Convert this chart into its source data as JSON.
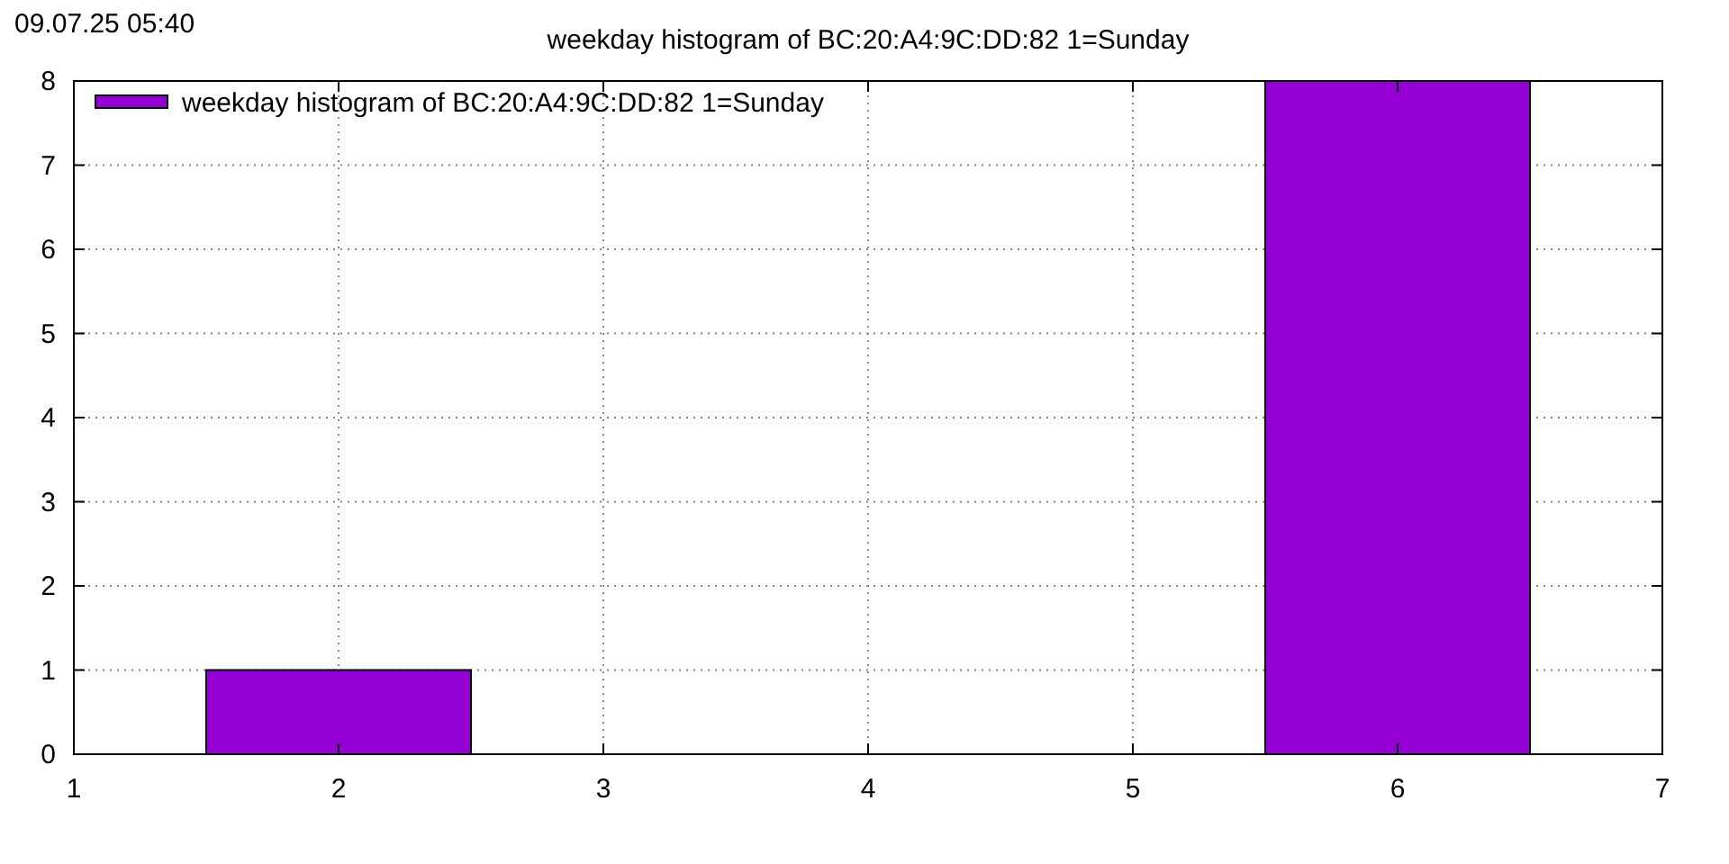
{
  "chart_data": {
    "type": "histogram",
    "title": "weekday histogram of BC:20:A4:9C:DD:82 1=Sunday",
    "annotations": [
      "09.07.25 05:40"
    ],
    "bins": [
      1.5,
      2.5,
      3.5,
      4.5,
      5.5,
      6.5
    ],
    "series": [
      {
        "name": "weekday histogram of BC:20:A4:9C:DD:82 1=Sunday",
        "color": "#9400d3",
        "values": [
          1,
          0,
          0,
          0,
          8
        ]
      }
    ],
    "xlim": [
      1,
      7
    ],
    "xticks": [
      1,
      2,
      3,
      4,
      5,
      6,
      7
    ],
    "ylim": [
      0,
      8
    ],
    "yticks": [
      0,
      1,
      2,
      3,
      4,
      5,
      6,
      7,
      8
    ],
    "grid": true,
    "legend": "top left"
  }
}
